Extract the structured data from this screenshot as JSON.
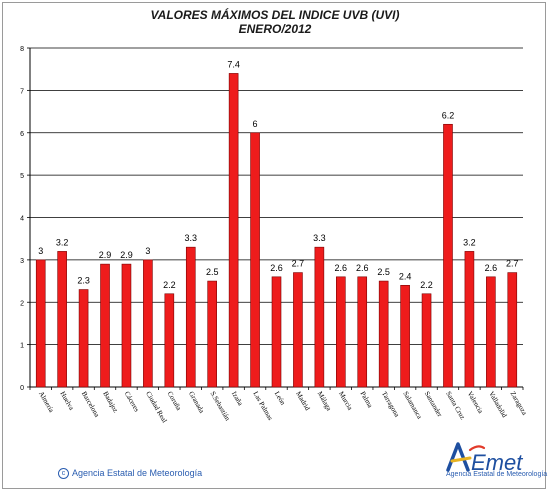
{
  "chart_data": {
    "type": "bar",
    "title": "VALORES MÁXIMOS DEL INDICE UVB (UVI)",
    "subtitle": "ENERO/2012",
    "categories": [
      "Almería",
      "Huelva",
      "Barcelona",
      "Badajoz",
      "Cáceres",
      "Ciudad Real",
      "Coruña",
      "Granada",
      "S.Sebastián",
      "Izaña",
      "Las Palmas",
      "León",
      "Madrid",
      "Málaga",
      "Murcia",
      "Palma",
      "Tarragona",
      "Salamanca",
      "Santander",
      "Santa Cruz",
      "Valencia",
      "Valladolid",
      "Zaragoza"
    ],
    "values": [
      3,
      3.2,
      2.3,
      2.9,
      2.9,
      3,
      2.2,
      3.3,
      2.5,
      7.4,
      6,
      2.6,
      2.7,
      3.3,
      2.6,
      2.6,
      2.5,
      2.4,
      2.2,
      6.2,
      3.2,
      2.6,
      2.7
    ],
    "value_labels": [
      "3",
      "3.2",
      "2.3",
      "2.9",
      "2.9",
      "3",
      "2.2",
      "3.3",
      "2.5",
      "7.4",
      "6",
      "2.6",
      "2.7",
      "3.3",
      "2.6",
      "2.6",
      "2.5",
      "2.4",
      "2.2",
      "6.2",
      "3.2",
      "2.6",
      "2.7"
    ],
    "yticks": [
      "0",
      "1",
      "2",
      "3",
      "4",
      "5",
      "6",
      "7",
      "8"
    ],
    "ylim": [
      0,
      8
    ],
    "grid": true,
    "bar_color": "#ee1c1c",
    "bar_edge_color": "#7a0000"
  },
  "footer": {
    "credit": "Agencia Estatal de Meteorología",
    "copyright_icon": "copyright-icon",
    "logo_text": "AEmet",
    "logo_subtitle": "Agencia Estatal de Meteorología"
  }
}
